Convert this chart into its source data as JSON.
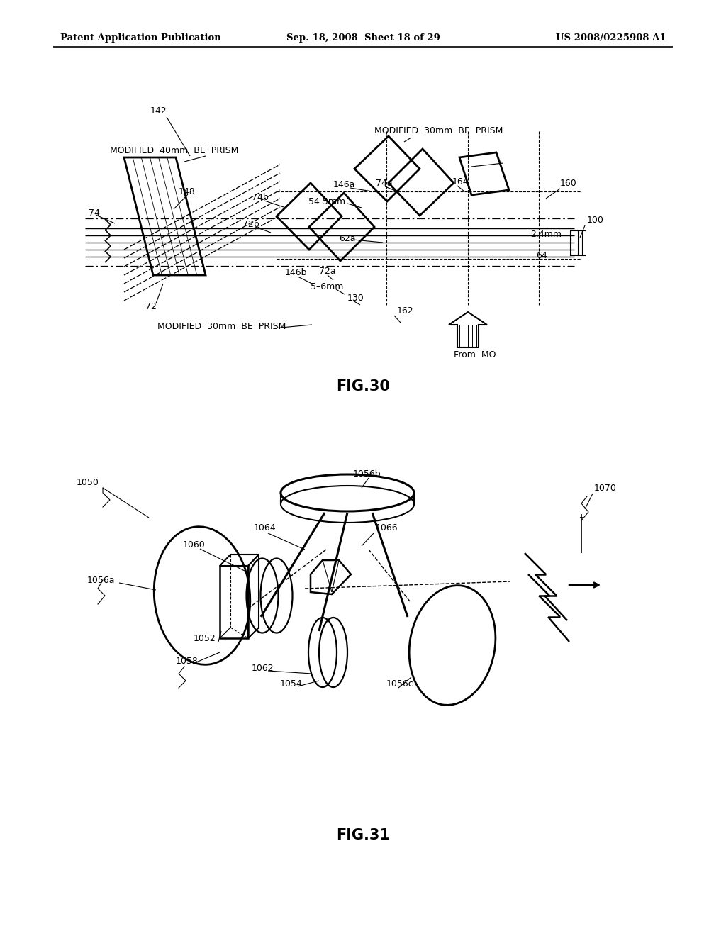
{
  "header_left": "Patent Application Publication",
  "header_mid": "Sep. 18, 2008  Sheet 18 of 29",
  "header_right": "US 2008/0225908 A1",
  "fig30_caption": "FIG.30",
  "fig31_caption": "FIG.31",
  "bg_color": "#ffffff",
  "line_color": "#000000"
}
